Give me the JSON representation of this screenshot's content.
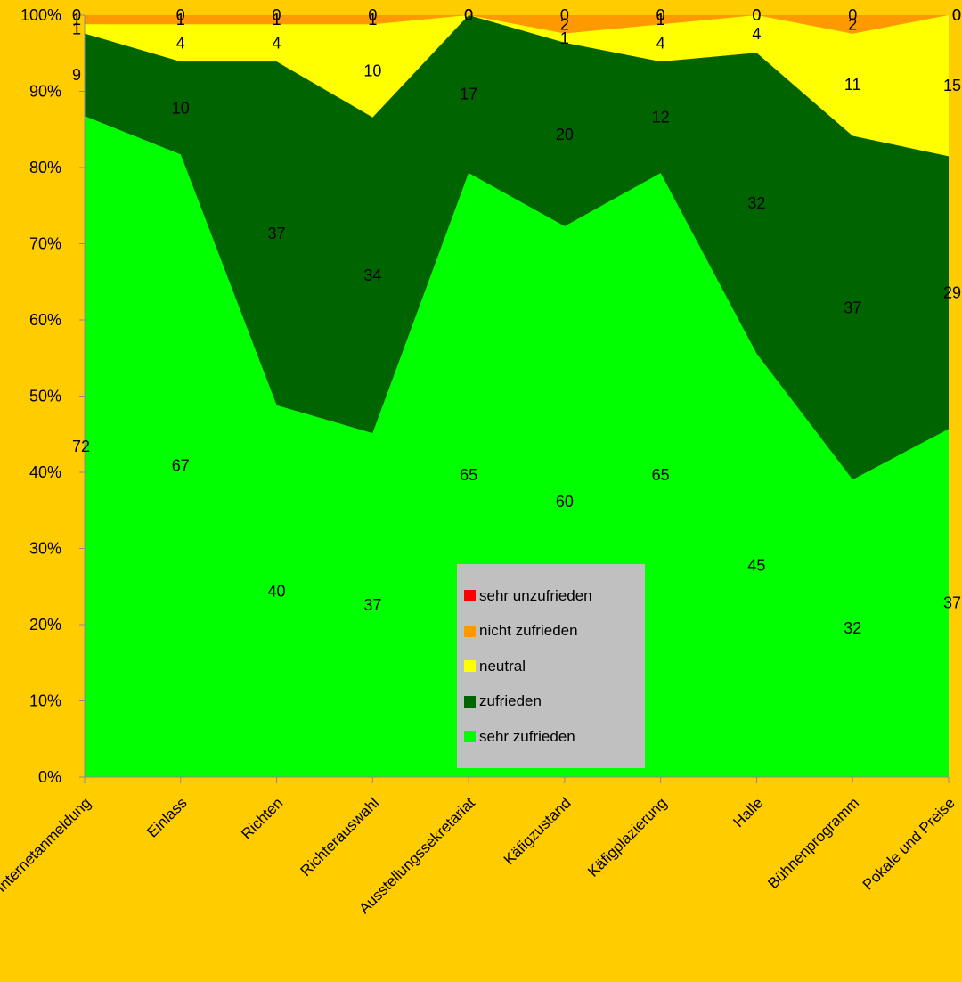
{
  "chart_data": {
    "type": "area",
    "stacked": "percent",
    "categories": [
      "Internetanmeldung",
      "Einlass",
      "Richten",
      "Richterauswahl",
      "Ausstellungssekretariat",
      "Käfigzustand",
      "Käfigplazierung",
      "Halle",
      "Bühnenprogramm",
      "Pokale und Preise"
    ],
    "series": [
      {
        "name": "sehr zufrieden",
        "color": "#00ff00",
        "values": [
          72,
          67,
          40,
          37,
          65,
          60,
          65,
          45,
          32,
          37
        ]
      },
      {
        "name": "zufrieden",
        "color": "#006400",
        "values": [
          9,
          10,
          37,
          34,
          17,
          20,
          12,
          32,
          37,
          29
        ]
      },
      {
        "name": "neutral",
        "color": "#ffff00",
        "values": [
          1,
          4,
          4,
          10,
          0,
          1,
          4,
          4,
          11,
          15
        ]
      },
      {
        "name": "nicht zufrieden",
        "color": "#ff9900",
        "values": [
          1,
          1,
          1,
          1,
          0,
          2,
          1,
          0,
          2,
          0
        ]
      },
      {
        "name": "sehr unzufrieden",
        "color": "#ff0000",
        "values": [
          0,
          0,
          0,
          0,
          0,
          0,
          0,
          0,
          0,
          0
        ]
      }
    ],
    "y_ticks": [
      "0%",
      "10%",
      "20%",
      "30%",
      "40%",
      "50%",
      "60%",
      "70%",
      "80%",
      "90%",
      "100%"
    ],
    "ylim": [
      0,
      100
    ],
    "legend_position": "bottom-center",
    "background_color": "#ffcc00",
    "grid": false
  }
}
